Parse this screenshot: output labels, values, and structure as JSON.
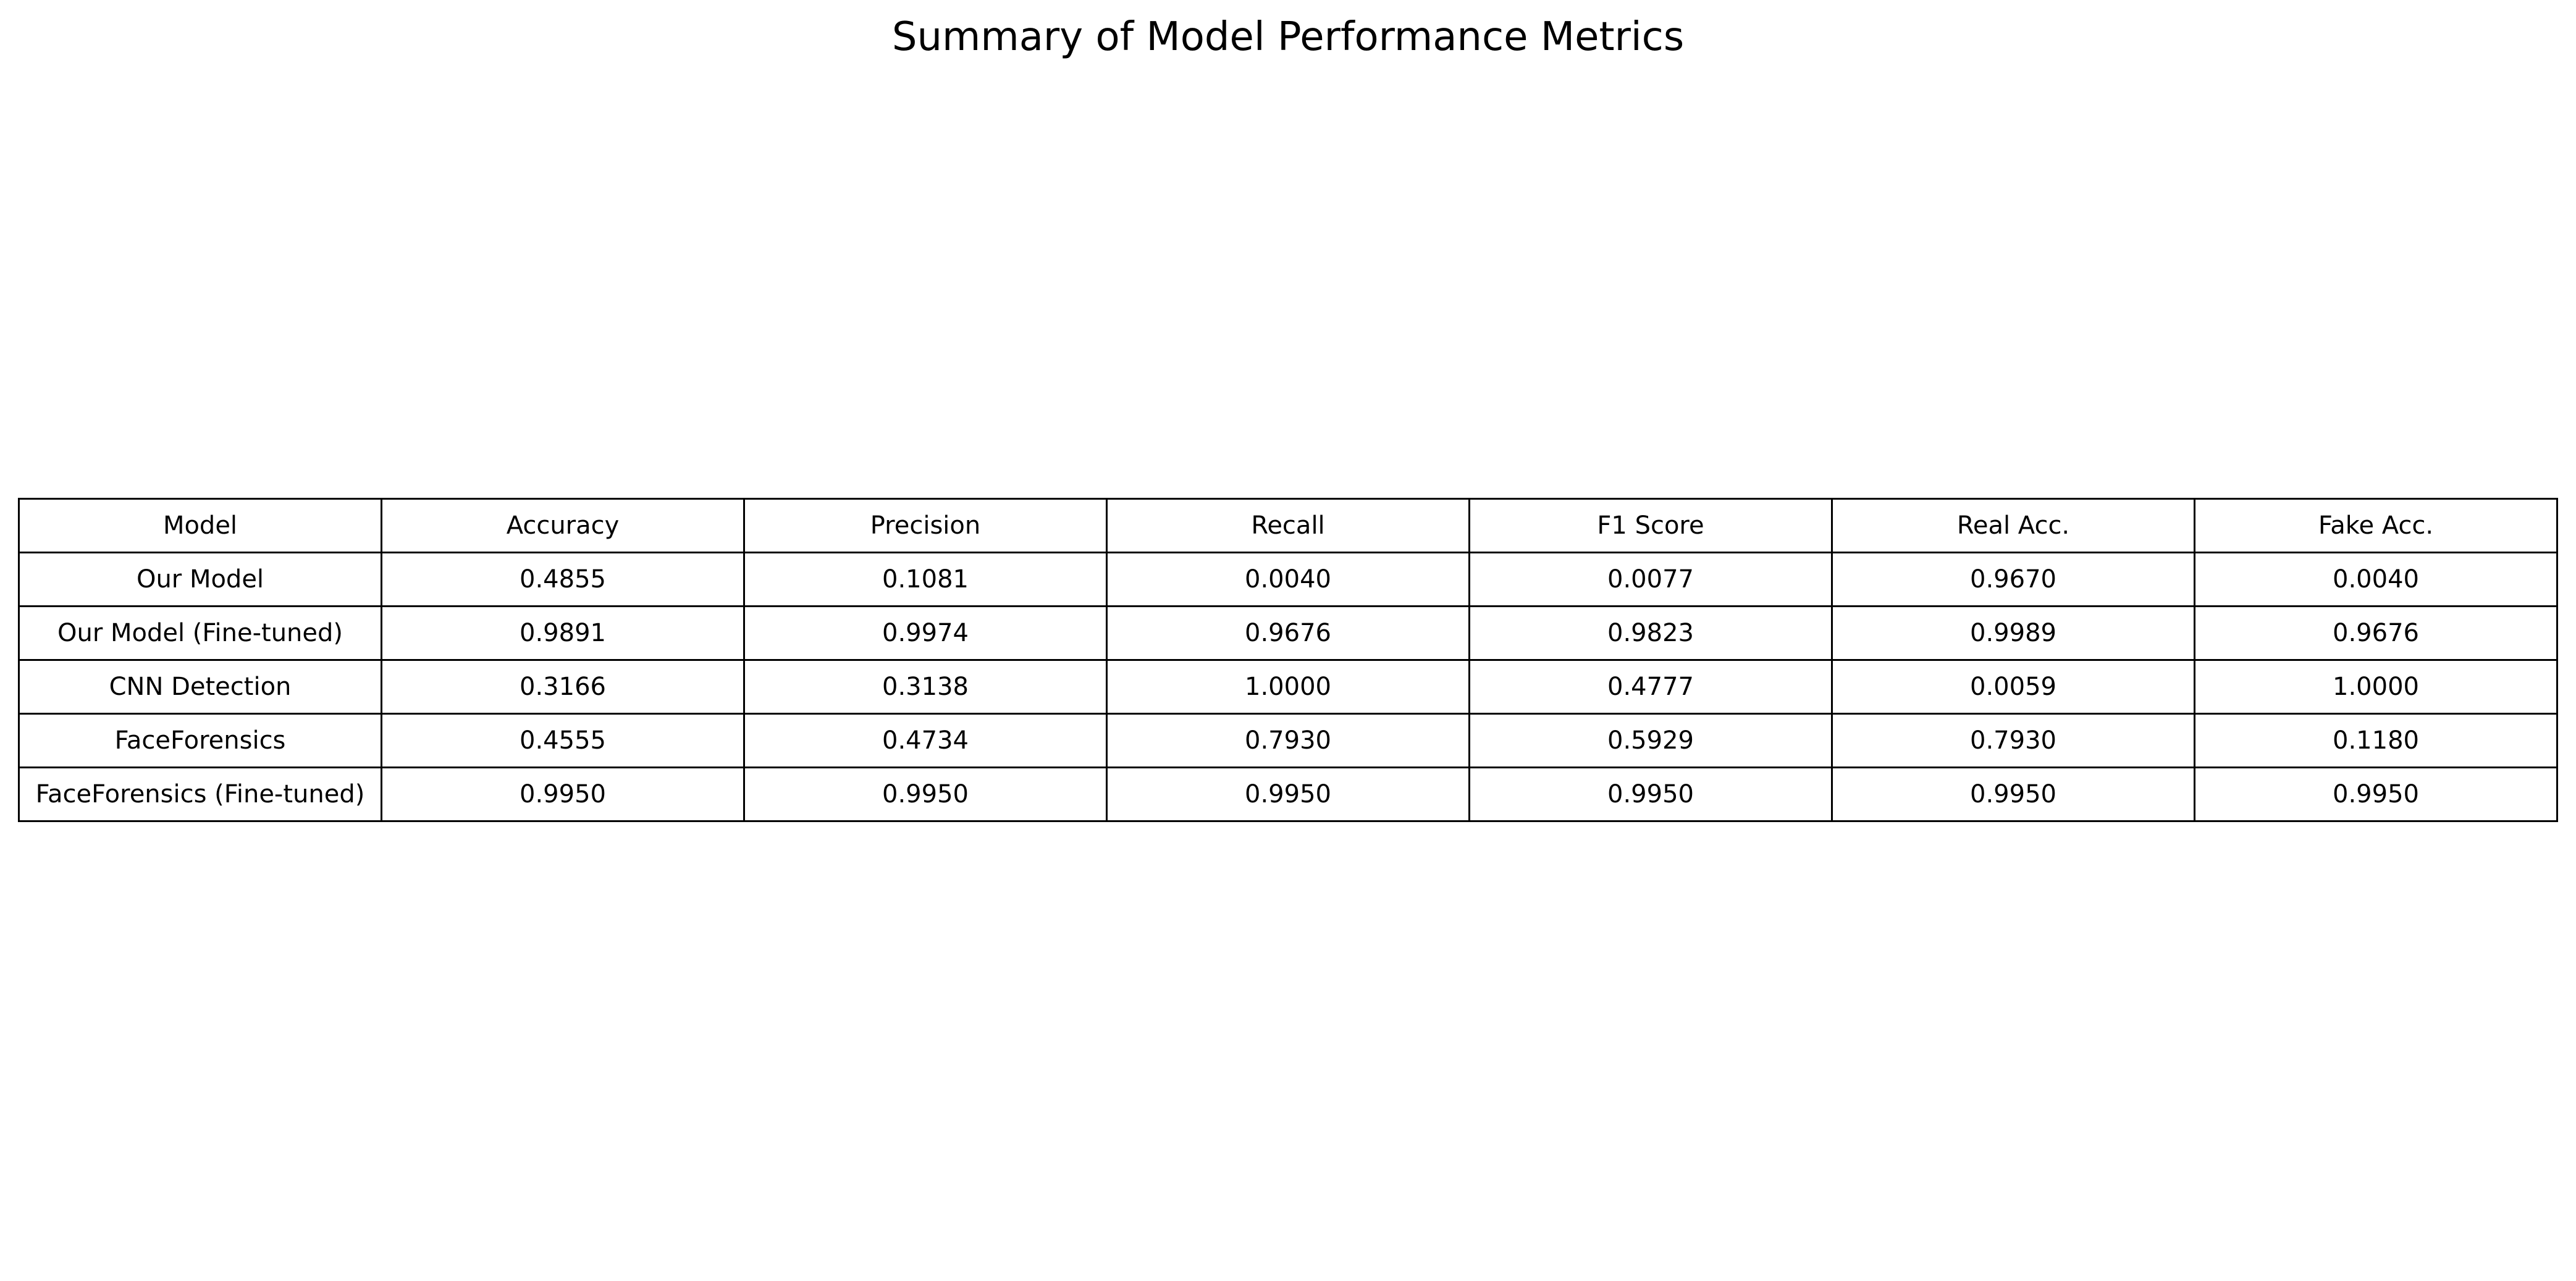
{
  "chart_data": {
    "type": "table",
    "title": "Summary of Model Performance Metrics",
    "columns": [
      "Model",
      "Accuracy",
      "Precision",
      "Recall",
      "F1 Score",
      "Real Acc.",
      "Fake Acc."
    ],
    "rows": [
      [
        "Our Model",
        "0.4855",
        "0.1081",
        "0.0040",
        "0.0077",
        "0.9670",
        "0.0040"
      ],
      [
        "Our Model (Fine-tuned)",
        "0.9891",
        "0.9974",
        "0.9676",
        "0.9823",
        "0.9989",
        "0.9676"
      ],
      [
        "CNN Detection",
        "0.3166",
        "0.3138",
        "1.0000",
        "0.4777",
        "0.0059",
        "1.0000"
      ],
      [
        "FaceForensics",
        "0.4555",
        "0.4734",
        "0.7930",
        "0.5929",
        "0.7930",
        "0.1180"
      ],
      [
        "FaceForensics (Fine-tuned)",
        "0.9950",
        "0.9950",
        "0.9950",
        "0.9950",
        "0.9950",
        "0.9950"
      ]
    ]
  }
}
